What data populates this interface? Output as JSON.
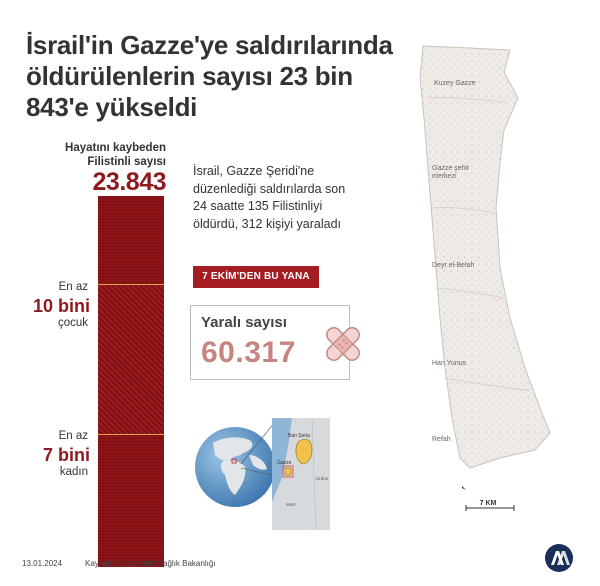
{
  "title": "İsrail'in Gazze'ye saldırılarında öldürülenlerin sayısı 23 bin 843'e yükseldi",
  "victims": {
    "caption": "Hayatını kaybeden Filistinli sayısı",
    "total": "23.843"
  },
  "children": {
    "prefix": "En az",
    "value": "10 bini",
    "suffix": "çocuk"
  },
  "women": {
    "prefix": "En az",
    "value": "7 bini",
    "suffix": "kadın"
  },
  "description": "İsrail, Gazze Şeridi'ne düzenlediği saldırılarda son 24 saatte 135 Filistinliyi öldürdü, 312 kişiyi yaraladı",
  "since_badge": "7 EKİM'DEN BU YANA",
  "wounded": {
    "label": "Yaralı sayısı",
    "value": "60.317"
  },
  "inset_map": {
    "labels": [
      "Batı Şeria",
      "Gazze",
      "Ürdün",
      "Mısır"
    ]
  },
  "gaza_map": {
    "cities": [
      "Kuzey Gazze",
      "Gazze şehir merkezi",
      "Deyr el-Belah",
      "Han Yunus",
      "Refah"
    ],
    "scale_label": "7 KM"
  },
  "footer": {
    "date": "13.01.2024",
    "source": "Kaynak: Gazze'deki Sağlık Bakanlığı"
  },
  "colors": {
    "dark_red": "#8e1a1e",
    "badge_red": "#a51d22",
    "wounded_value": "#c78582",
    "map_fill": "#efece8",
    "logo_blue": "#1a2f5a"
  }
}
